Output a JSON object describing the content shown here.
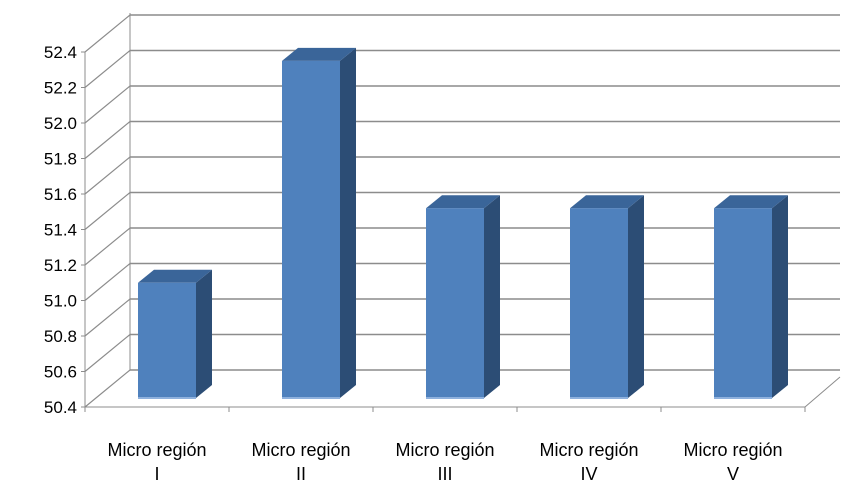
{
  "chart_data": {
    "type": "bar",
    "title": "",
    "xlabel": "",
    "ylabel": "",
    "categories": [
      [
        "Micro región",
        "I"
      ],
      [
        "Micro región",
        "II"
      ],
      [
        "Micro región",
        "III"
      ],
      [
        "Micro región",
        "IV"
      ],
      [
        "Micro región",
        "V"
      ]
    ],
    "values": [
      51.1,
      52.35,
      51.52,
      51.52,
      51.52
    ],
    "ylim": [
      50.4,
      52.4
    ],
    "yticks": [
      "50.4",
      "50.6",
      "50.8",
      "51.0",
      "51.2",
      "51.4",
      "51.6",
      "51.8",
      "52.0",
      "52.2",
      "52.4"
    ],
    "grid": true,
    "legend": "none",
    "style": "3d-column",
    "colors": {
      "bar_front": "#4f81bd",
      "bar_side": "#2c4d75",
      "bar_top": "#3a6599",
      "grid": "#8c8c8c",
      "text": "#000000"
    }
  }
}
